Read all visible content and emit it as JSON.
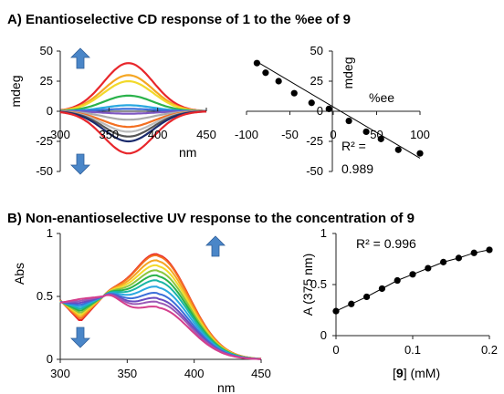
{
  "panels": {
    "a": {
      "title": "A)  Enantioselective CD response of 1 to the %ee of 9"
    },
    "b": {
      "title": "B) Non-enantioselective UV response to the concentration of 9"
    }
  },
  "colors": {
    "arrow": "#4a86c8",
    "spectra": [
      "#e8262b",
      "#f36f21",
      "#f5a623",
      "#f2d92a",
      "#8cc63f",
      "#2ab24b",
      "#19b5a6",
      "#29a8e0",
      "#3b6fd9",
      "#6a4bbf",
      "#9b59b6",
      "#d43f8d"
    ],
    "cd_spectra": [
      "#e8262b",
      "#f5a623",
      "#f2d92a",
      "#2ab24b",
      "#29a8e0",
      "#3b6fd9",
      "#7e57c2",
      "#aaaaaa",
      "#f36f21",
      "#bbbbbb",
      "#555555",
      "#1a2a6c",
      "#e8262b"
    ]
  },
  "chart_data": [
    {
      "id": "cd-spectra",
      "type": "line",
      "xlabel": "nm",
      "ylabel": "mdeg",
      "xlim": [
        300,
        450
      ],
      "ylim": [
        -50,
        50
      ],
      "xticks": [
        "300",
        "350",
        "400",
        "450"
      ],
      "yticks": [
        "50",
        "25",
        "0",
        "-25",
        "-50"
      ],
      "peak_nm": 370,
      "series_amplitudes": [
        40,
        30,
        25,
        13,
        5,
        2,
        -2,
        -7,
        -13,
        -17,
        -21,
        -25,
        -35
      ],
      "annotations": [
        "arrow-up",
        "arrow-down"
      ]
    },
    {
      "id": "cd-vs-ee",
      "type": "scatter",
      "xlabel": "%ee",
      "ylabel": "mdeg",
      "xlim": [
        -100,
        100
      ],
      "ylim": [
        -50,
        50
      ],
      "xticks": [
        "-100",
        "-50",
        "0",
        "50",
        "100"
      ],
      "yticks": [
        "50",
        "25",
        "0",
        "-25",
        "-50"
      ],
      "x": [
        -88,
        -78,
        -63,
        -45,
        -25,
        -5,
        18,
        38,
        55,
        75,
        100
      ],
      "y": [
        40,
        32,
        25,
        15,
        7,
        2,
        -8,
        -17,
        -23,
        -32,
        -35
      ],
      "fit": {
        "x": [
          -90,
          100
        ],
        "y": [
          42,
          -39
        ]
      },
      "r2_label": "R² =",
      "r2_value": "0.989"
    },
    {
      "id": "uv-spectra",
      "type": "line",
      "xlabel": "nm",
      "ylabel": "Abs",
      "xlim": [
        300,
        450
      ],
      "ylim": [
        0,
        1
      ],
      "xticks": [
        "300",
        "350",
        "400",
        "450"
      ],
      "yticks": [
        "1",
        "0.5",
        "0"
      ],
      "isosbestic_nm": 332,
      "peak_nm": 372,
      "series_peaks": [
        0.83,
        0.82,
        0.78,
        0.74,
        0.7,
        0.66,
        0.62,
        0.57,
        0.52,
        0.48,
        0.45,
        0.41
      ],
      "annotations": [
        "arrow-up",
        "arrow-down"
      ]
    },
    {
      "id": "abs-vs-conc",
      "type": "scatter",
      "xlabel_prefix": "[",
      "xlabel_bold": "9",
      "xlabel_suffix": "] (mM)",
      "ylabel": "A (375 nm)",
      "xlim": [
        0,
        0.2
      ],
      "ylim": [
        0,
        1
      ],
      "xticks": [
        "0",
        "0.1",
        "0.2"
      ],
      "yticks": [
        "1",
        "0.5",
        "0"
      ],
      "x": [
        0,
        0.02,
        0.04,
        0.06,
        0.08,
        0.1,
        0.12,
        0.14,
        0.16,
        0.18,
        0.2
      ],
      "y": [
        0.24,
        0.31,
        0.38,
        0.46,
        0.54,
        0.6,
        0.66,
        0.72,
        0.76,
        0.81,
        0.84
      ],
      "r2_label": "R² = 0.996"
    }
  ]
}
